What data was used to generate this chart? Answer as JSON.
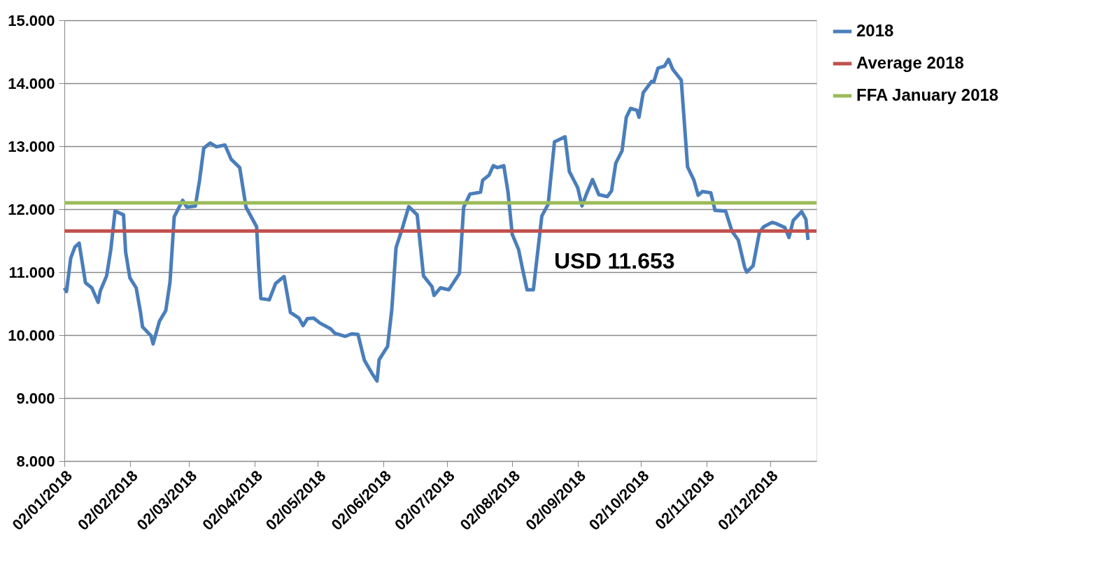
{
  "chart_data": {
    "type": "line",
    "ylim": [
      8000,
      15000
    ],
    "yticks": [
      {
        "value": 8000,
        "label": "8.000"
      },
      {
        "value": 9000,
        "label": "9.000"
      },
      {
        "value": 10000,
        "label": "10.000"
      },
      {
        "value": 11000,
        "label": "11.000"
      },
      {
        "value": 12000,
        "label": "12.000"
      },
      {
        "value": 13000,
        "label": "13.000"
      },
      {
        "value": 14000,
        "label": "14.000"
      },
      {
        "value": 15000,
        "label": "15.000"
      }
    ],
    "xlim": [
      "2018-01-02",
      "2018-12-24"
    ],
    "xticks": [
      {
        "value": "2018-01-02",
        "label": "02/01/2018"
      },
      {
        "value": "2018-02-02",
        "label": "02/02/2018"
      },
      {
        "value": "2018-03-02",
        "label": "02/03/2018"
      },
      {
        "value": "2018-04-02",
        "label": "02/04/2018"
      },
      {
        "value": "2018-05-02",
        "label": "02/05/2018"
      },
      {
        "value": "2018-06-02",
        "label": "02/06/2018"
      },
      {
        "value": "2018-07-02",
        "label": "02/07/2018"
      },
      {
        "value": "2018-08-02",
        "label": "02/08/2018"
      },
      {
        "value": "2018-09-02",
        "label": "02/09/2018"
      },
      {
        "value": "2018-10-02",
        "label": "02/10/2018"
      },
      {
        "value": "2018-11-02",
        "label": "02/11/2018"
      },
      {
        "value": "2018-12-02",
        "label": "02/12/2018"
      }
    ],
    "grid": "y",
    "legend": "right",
    "marker": "none",
    "line_style": "solid",
    "series": [
      {
        "name": "2018",
        "color": "#4a7ebb",
        "x": [
          "2018-01-02",
          "2018-01-03",
          "2018-01-05",
          "2018-01-07",
          "2018-01-09",
          "2018-01-12",
          "2018-01-15",
          "2018-01-18",
          "2018-01-19",
          "2018-01-22",
          "2018-01-24",
          "2018-01-26",
          "2018-01-30",
          "2018-01-31",
          "2018-02-02",
          "2018-02-05",
          "2018-02-07",
          "2018-02-08",
          "2018-02-12",
          "2018-02-13",
          "2018-02-16",
          "2018-02-19",
          "2018-02-21",
          "2018-02-23",
          "2018-02-27",
          "2018-03-01",
          "2018-03-05",
          "2018-03-07",
          "2018-03-09",
          "2018-03-12",
          "2018-03-15",
          "2018-03-19",
          "2018-03-22",
          "2018-03-26",
          "2018-03-29",
          "2018-04-03",
          "2018-04-04",
          "2018-04-05",
          "2018-04-09",
          "2018-04-12",
          "2018-04-16",
          "2018-04-19",
          "2018-04-23",
          "2018-04-25",
          "2018-04-27",
          "2018-04-30",
          "2018-05-03",
          "2018-05-08",
          "2018-05-10",
          "2018-05-15",
          "2018-05-18",
          "2018-05-21",
          "2018-05-24",
          "2018-05-28",
          "2018-05-30",
          "2018-05-31",
          "2018-06-04",
          "2018-06-06",
          "2018-06-08",
          "2018-06-11",
          "2018-06-14",
          "2018-06-18",
          "2018-06-21",
          "2018-06-25",
          "2018-06-26",
          "2018-06-29",
          "2018-07-03",
          "2018-07-08",
          "2018-07-10",
          "2018-07-13",
          "2018-07-18",
          "2018-07-19",
          "2018-07-22",
          "2018-07-24",
          "2018-07-26",
          "2018-07-29",
          "2018-07-31",
          "2018-08-02",
          "2018-08-05",
          "2018-08-07",
          "2018-08-09",
          "2018-08-12",
          "2018-08-16",
          "2018-08-19",
          "2018-08-22",
          "2018-08-27",
          "2018-08-29",
          "2018-09-02",
          "2018-09-04",
          "2018-09-06",
          "2018-09-09",
          "2018-09-12",
          "2018-09-16",
          "2018-09-18",
          "2018-09-20",
          "2018-09-23",
          "2018-09-25",
          "2018-09-27",
          "2018-09-30",
          "2018-10-01",
          "2018-10-03",
          "2018-10-07",
          "2018-10-08",
          "2018-10-10",
          "2018-10-13",
          "2018-10-15",
          "2018-10-17",
          "2018-10-21",
          "2018-10-24",
          "2018-10-27",
          "2018-10-29",
          "2018-10-31",
          "2018-11-04",
          "2018-11-06",
          "2018-11-11",
          "2018-11-14",
          "2018-11-17",
          "2018-11-20",
          "2018-11-21",
          "2018-11-24",
          "2018-11-27",
          "2018-11-29",
          "2018-12-03",
          "2018-12-05",
          "2018-12-09",
          "2018-12-11",
          "2018-12-13",
          "2018-12-17",
          "2018-12-19",
          "2018-12-20"
        ],
        "values": [
          10750,
          10690,
          11220,
          11400,
          11460,
          10830,
          10750,
          10520,
          10700,
          10940,
          11360,
          11970,
          11910,
          11320,
          10910,
          10750,
          10370,
          10130,
          9990,
          9860,
          10220,
          10390,
          10840,
          11880,
          12140,
          12030,
          12050,
          12460,
          12970,
          13050,
          12990,
          13020,
          12790,
          12660,
          12030,
          11720,
          11080,
          10580,
          10560,
          10820,
          10930,
          10360,
          10270,
          10150,
          10260,
          10270,
          10190,
          10100,
          10030,
          9980,
          10020,
          10010,
          9600,
          9370,
          9270,
          9610,
          9820,
          10410,
          11390,
          11700,
          12040,
          11910,
          10940,
          10770,
          10630,
          10750,
          10720,
          10980,
          12030,
          12240,
          12270,
          12460,
          12540,
          12690,
          12660,
          12690,
          12270,
          11600,
          11360,
          11030,
          10720,
          10720,
          11890,
          12080,
          13070,
          13150,
          12600,
          12340,
          12050,
          12230,
          12470,
          12230,
          12200,
          12290,
          12730,
          12930,
          13460,
          13600,
          13570,
          13460,
          13850,
          14030,
          14020,
          14240,
          14270,
          14380,
          14220,
          14050,
          12670,
          12460,
          12220,
          12280,
          12260,
          11980,
          11970,
          11650,
          11510,
          11080,
          11000,
          11100,
          11630,
          11720,
          11790,
          11770,
          11710,
          11550,
          11820,
          11960,
          11840,
          11510
        ]
      },
      {
        "name": "Average 2018",
        "color": "#c0504d",
        "x": [
          "2018-01-02",
          "2018-12-24"
        ],
        "values": [
          11653,
          11653
        ]
      },
      {
        "name": "FFA January 2018",
        "color": "#9bbb59",
        "x": [
          "2018-01-02",
          "2018-12-24"
        ],
        "values": [
          12100,
          12100
        ]
      }
    ],
    "annotations": [
      "USD 11.653"
    ]
  }
}
